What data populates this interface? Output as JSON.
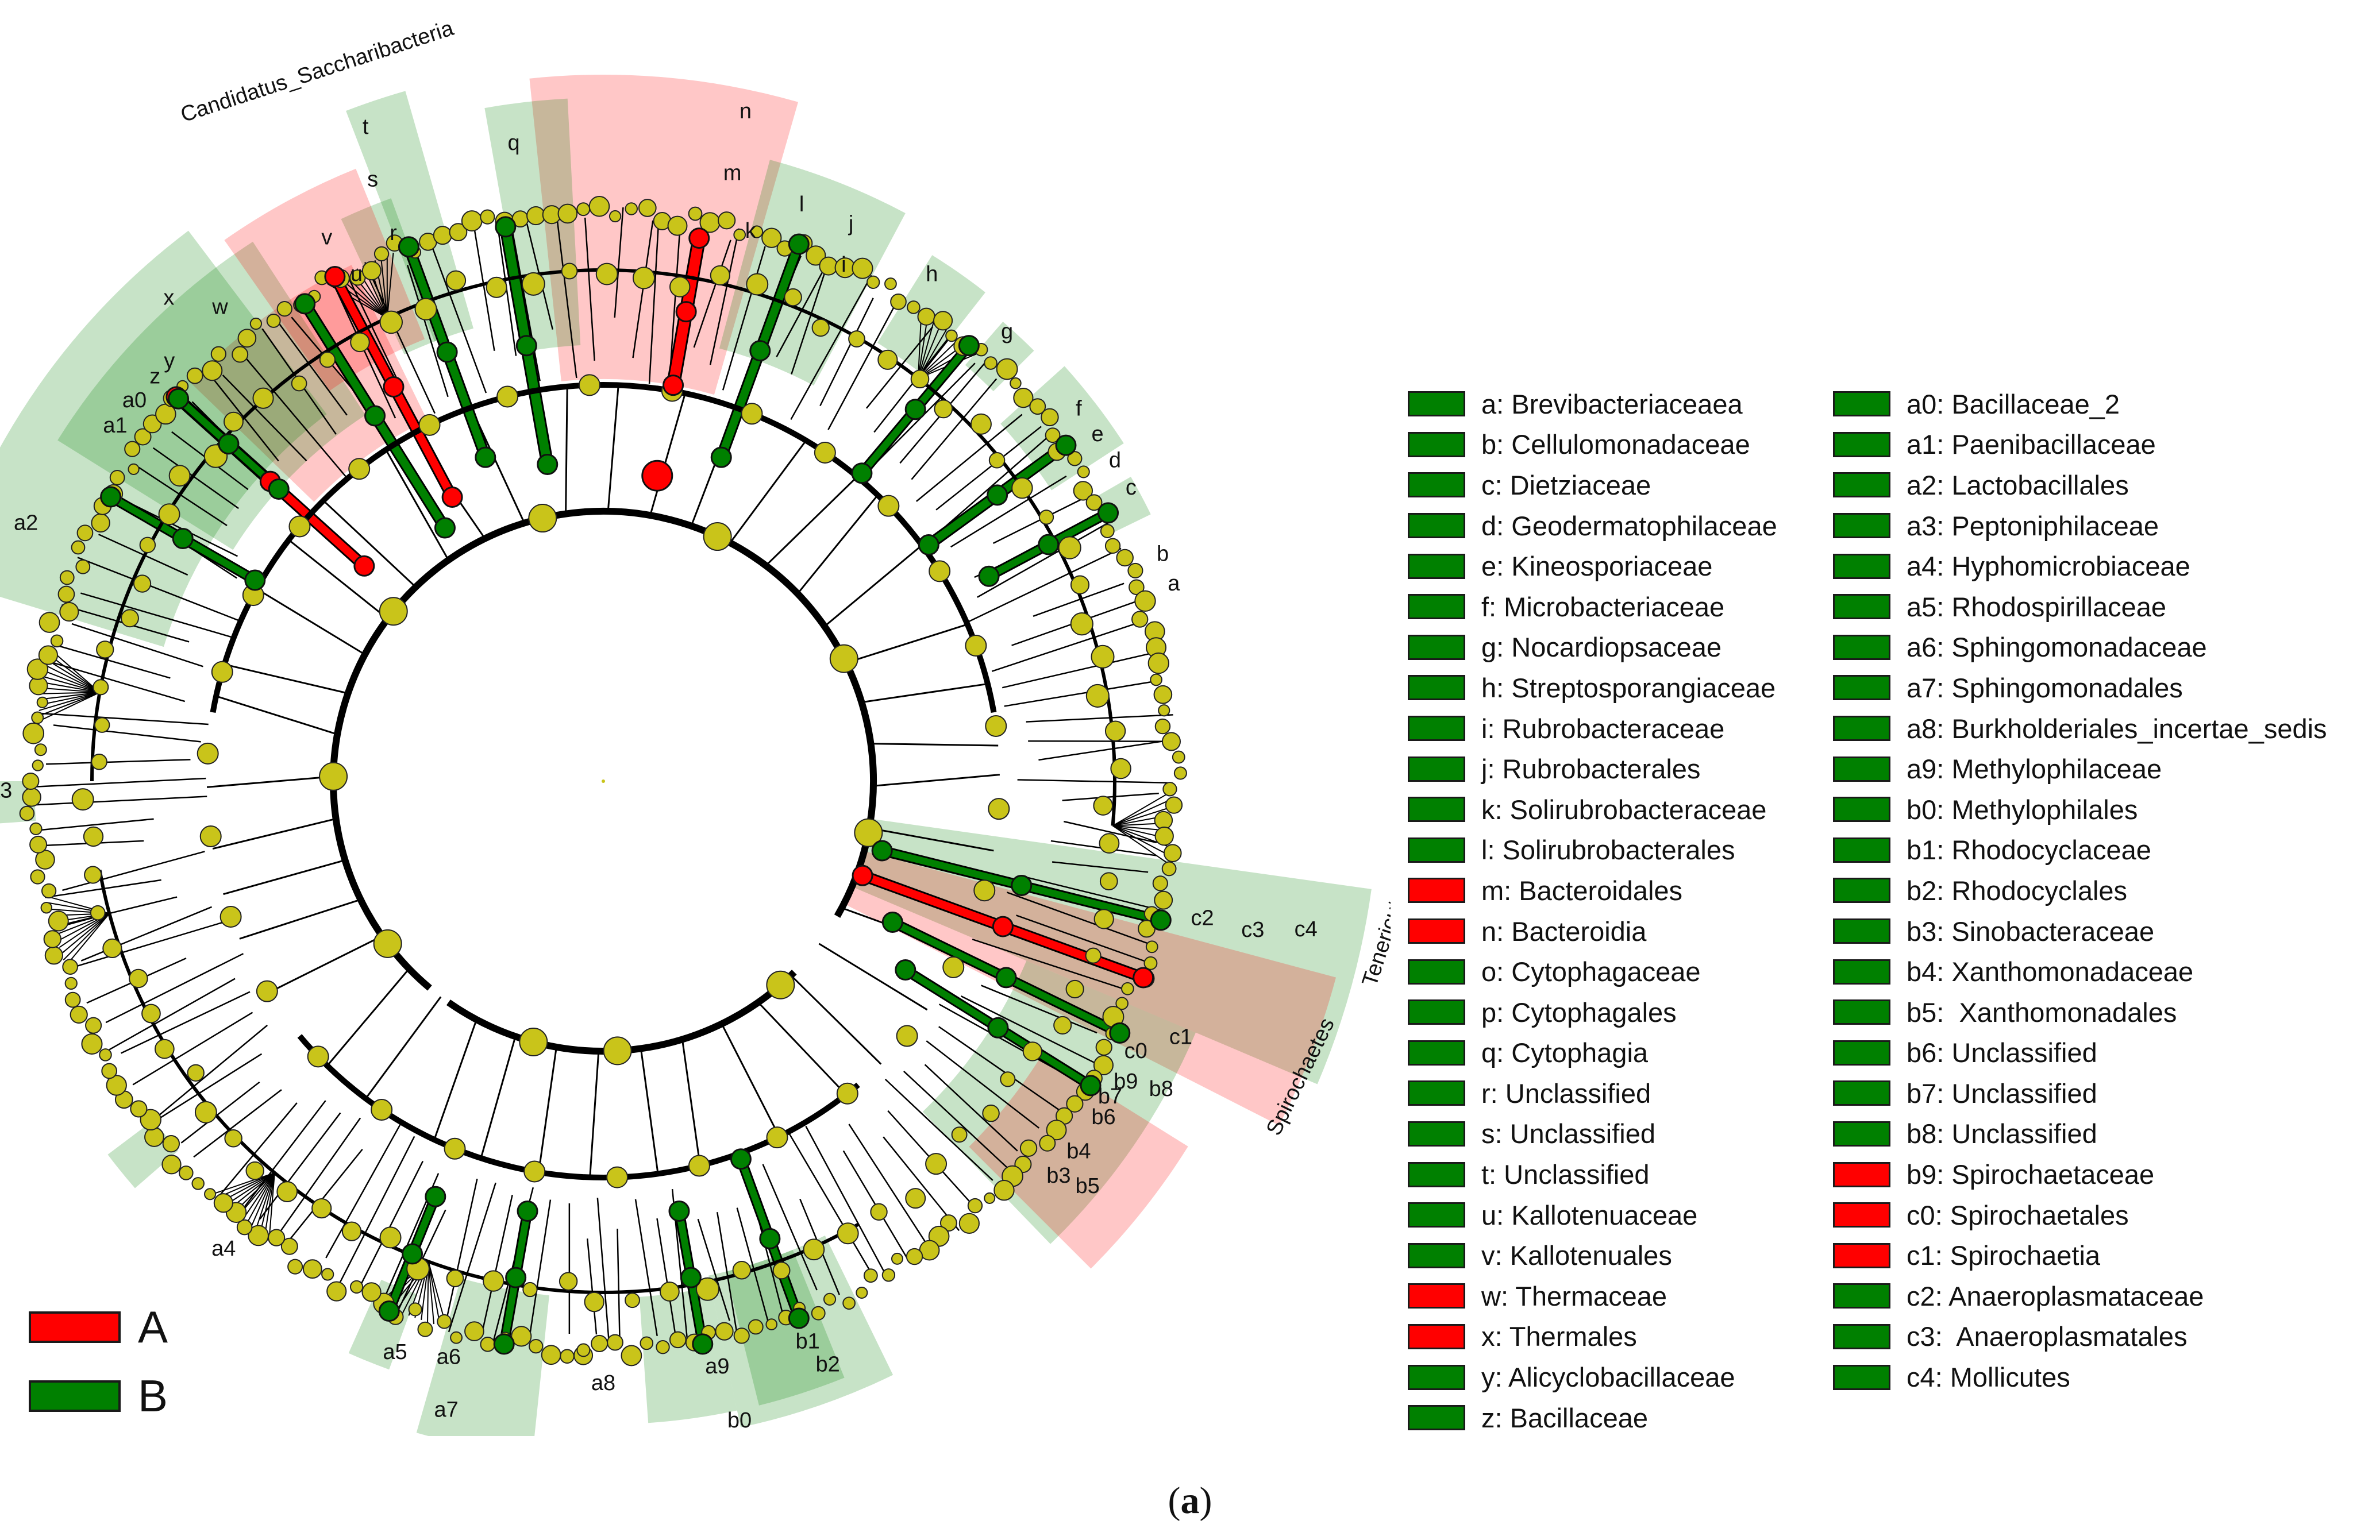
{
  "colors": {
    "A": "#ff0000",
    "B": "#008000",
    "node": "#c9c41a",
    "edge": "#000000"
  },
  "group_legend": [
    {
      "label": "A",
      "color": "#ff0000"
    },
    {
      "label": "B",
      "color": "#008000"
    }
  ],
  "key_left": [
    {
      "code": "a",
      "name": "Brevibacteriaceaea",
      "group": "B"
    },
    {
      "code": "b",
      "name": "Cellulomonadaceae",
      "group": "B"
    },
    {
      "code": "c",
      "name": "Dietziaceae",
      "group": "B"
    },
    {
      "code": "d",
      "name": "Geodermatophilaceae",
      "group": "B"
    },
    {
      "code": "e",
      "name": "Kineosporiaceae",
      "group": "B"
    },
    {
      "code": "f",
      "name": "Microbacteriaceae",
      "group": "B"
    },
    {
      "code": "g",
      "name": "Nocardiopsaceae",
      "group": "B"
    },
    {
      "code": "h",
      "name": "Streptosporangiaceae",
      "group": "B"
    },
    {
      "code": "i",
      "name": "Rubrobacteraceae",
      "group": "B"
    },
    {
      "code": "j",
      "name": "Rubrobacterales",
      "group": "B"
    },
    {
      "code": "k",
      "name": "Solirubrobacteraceae",
      "group": "B"
    },
    {
      "code": "l",
      "name": "Solirubrobacterales",
      "group": "B"
    },
    {
      "code": "m",
      "name": "Bacteroidales",
      "group": "A"
    },
    {
      "code": "n",
      "name": "Bacteroidia",
      "group": "A"
    },
    {
      "code": "o",
      "name": "Cytophagaceae",
      "group": "B"
    },
    {
      "code": "p",
      "name": "Cytophagales",
      "group": "B"
    },
    {
      "code": "q",
      "name": "Cytophagia",
      "group": "B"
    },
    {
      "code": "r",
      "name": "Unclassified",
      "group": "B"
    },
    {
      "code": "s",
      "name": "Unclassified",
      "group": "B"
    },
    {
      "code": "t",
      "name": "Unclassified",
      "group": "B"
    },
    {
      "code": "u",
      "name": "Kallotenuaceae",
      "group": "B"
    },
    {
      "code": "v",
      "name": "Kallotenuales",
      "group": "B"
    },
    {
      "code": "w",
      "name": "Thermaceae",
      "group": "A"
    },
    {
      "code": "x",
      "name": "Thermales",
      "group": "A"
    },
    {
      "code": "y",
      "name": "Alicyclobacillaceae",
      "group": "B"
    },
    {
      "code": "z",
      "name": "Bacillaceae",
      "group": "B"
    }
  ],
  "key_right": [
    {
      "code": "a0",
      "name": "Bacillaceae_2",
      "group": "B"
    },
    {
      "code": "a1",
      "name": "Paenibacillaceae",
      "group": "B"
    },
    {
      "code": "a2",
      "name": "Lactobacillales",
      "group": "B"
    },
    {
      "code": "a3",
      "name": "Peptoniphilaceae",
      "group": "B"
    },
    {
      "code": "a4",
      "name": "Hyphomicrobiaceae",
      "group": "B"
    },
    {
      "code": "a5",
      "name": "Rhodospirillaceae",
      "group": "B"
    },
    {
      "code": "a6",
      "name": "Sphingomonadaceae",
      "group": "B"
    },
    {
      "code": "a7",
      "name": "Sphingomonadales",
      "group": "B"
    },
    {
      "code": "a8",
      "name": "Burkholderiales_incertae_sedis",
      "group": "B"
    },
    {
      "code": "a9",
      "name": "Methylophilaceae",
      "group": "B"
    },
    {
      "code": "b0",
      "name": "Methylophilales",
      "group": "B"
    },
    {
      "code": "b1",
      "name": "Rhodocyclaceae",
      "group": "B"
    },
    {
      "code": "b2",
      "name": "Rhodocyclales",
      "group": "B"
    },
    {
      "code": "b3",
      "name": "Sinobacteraceae",
      "group": "B"
    },
    {
      "code": "b4",
      "name": "Xanthomonadaceae",
      "group": "B"
    },
    {
      "code": "b5",
      "name": " Xanthomonadales",
      "group": "B"
    },
    {
      "code": "b6",
      "name": "Unclassified",
      "group": "B"
    },
    {
      "code": "b7",
      "name": "Unclassified",
      "group": "B"
    },
    {
      "code": "b8",
      "name": "Unclassified",
      "group": "B"
    },
    {
      "code": "b9",
      "name": "Spirochaetaceae",
      "group": "A"
    },
    {
      "code": "c0",
      "name": "Spirochaetales",
      "group": "A"
    },
    {
      "code": "c1",
      "name": "Spirochaetia",
      "group": "A"
    },
    {
      "code": "c2",
      "name": "Anaeroplasmataceae",
      "group": "B"
    },
    {
      "code": "c3",
      "name": " Anaeroplasmatales",
      "group": "B"
    },
    {
      "code": "c4",
      "name": "Mollicutes",
      "group": "B"
    }
  ],
  "phylum_labels": [
    {
      "text": "Candidatus_Saccharibacteria",
      "group": "B"
    },
    {
      "text": "Tenericutes",
      "group": "B"
    },
    {
      "text": "Spirochaetes",
      "group": "A"
    }
  ],
  "caption": {
    "open": "(",
    "letter": "a",
    "close": ")"
  }
}
